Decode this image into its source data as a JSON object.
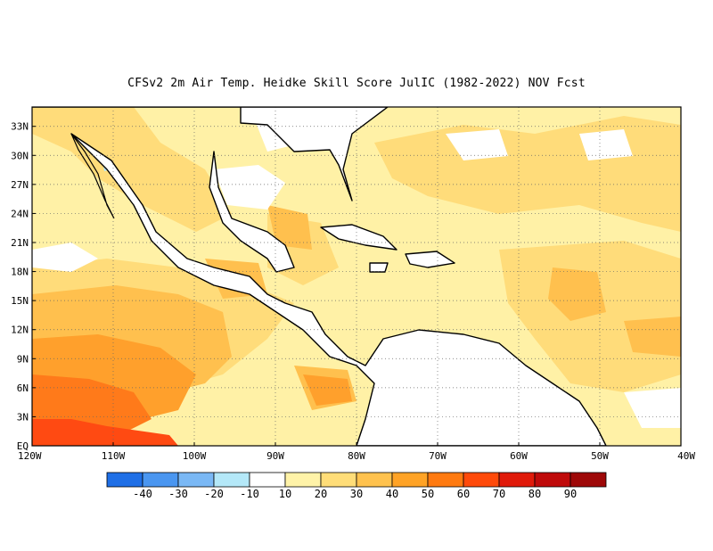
{
  "title": "CFSv2  2m Air Temp. Heidke Skill Score JulIC (1982-2022) NOV Fcst",
  "lat_labels": [
    "EQ",
    "3N",
    "6N",
    "9N",
    "12N",
    "15N",
    "18N",
    "21N",
    "24N",
    "27N",
    "30N",
    "33N"
  ],
  "lon_labels": [
    "120W",
    "110W",
    "100W",
    "90W",
    "80W",
    "70W",
    "60W",
    "50W",
    "40W"
  ],
  "colorbar": {
    "colors": [
      "#1f6fe6",
      "#4a96f0",
      "#7ab8f5",
      "#b4e8f8",
      "#ffffff",
      "#fff3a8",
      "#ffdd78",
      "#ffc24e",
      "#ffa326",
      "#ff7a10",
      "#ff4a0a",
      "#e01a0a",
      "#bf0a0a",
      "#9e0808"
    ],
    "labels": [
      "-40",
      "-30",
      "-20",
      "-10",
      "10",
      "20",
      "30",
      "40",
      "50",
      "60",
      "70",
      "80",
      "90"
    ]
  },
  "map_colors": {
    "light": "#fff1a6",
    "med": "#ffdc7a",
    "orange": "#ffc04e",
    "deep": "#ffa02c",
    "darkorange": "#ff7a1a",
    "red": "#ff4a12",
    "blue": "#b4e8f8"
  }
}
